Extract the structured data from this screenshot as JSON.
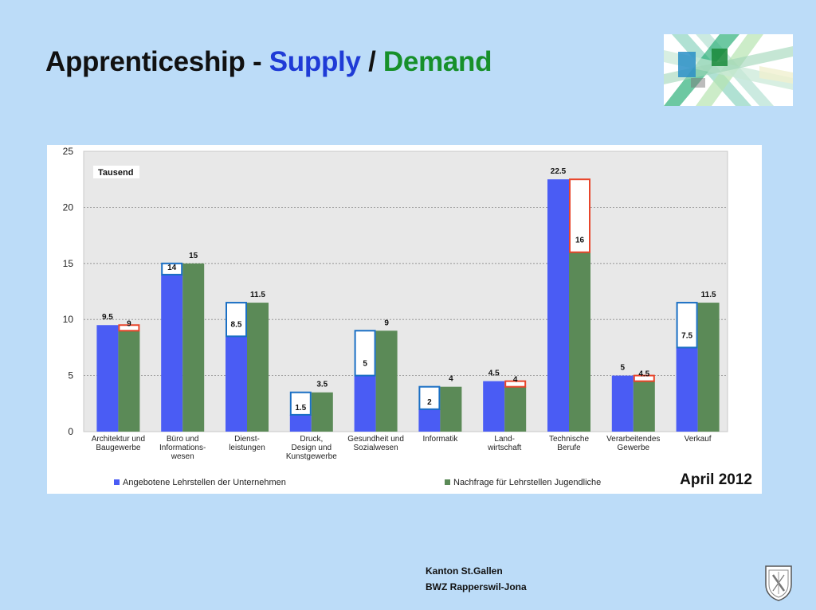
{
  "slide": {
    "title_main": "Apprenticeship - ",
    "title_supply": "Supply",
    "title_sep": " / ",
    "title_demand": "Demand",
    "date": "April 2012",
    "footer_line1": "Kanton St.Gallen",
    "footer_line2": "BWZ Rapperswil-Jona"
  },
  "chart_data": {
    "type": "bar",
    "unit_label": "Tausend",
    "ylim": [
      0,
      25
    ],
    "yticks": [
      0,
      5,
      10,
      15,
      20,
      25
    ],
    "grid": true,
    "legend_position": "bottom",
    "categories": [
      [
        "Architektur und",
        "Baugewerbe"
      ],
      [
        "Büro und",
        "Informations-",
        "wesen"
      ],
      [
        "Dienst-",
        "leistungen"
      ],
      [
        "Druck,",
        "Design und",
        "Kunstgewerbe"
      ],
      [
        "Gesundheit  und",
        "Sozialwesen"
      ],
      [
        "Informatik"
      ],
      [
        "Land-",
        "wirtschaft"
      ],
      [
        "Technische",
        "Berufe"
      ],
      [
        "Verarbeitendes",
        "Gewerbe"
      ],
      [
        "Verkauf"
      ]
    ],
    "series": [
      {
        "name": "Angebotene Lehrstellen der Unternehmen",
        "color": "#4a5cf4",
        "values": [
          9.5,
          14,
          8.5,
          1.5,
          5,
          2,
          4.5,
          22.5,
          5,
          7.5
        ],
        "labels": [
          "9.5",
          "14",
          "8.5",
          "1.5",
          "5",
          "2",
          "4.5",
          "22.5",
          "5",
          "7.5"
        ]
      },
      {
        "name": "Nachfrage für Lehrstellen Jugendliche",
        "color": "#5b8a57",
        "values": [
          9,
          15,
          11.5,
          3.5,
          9,
          4,
          4,
          16,
          4.5,
          11.5
        ],
        "labels": [
          "9",
          "15",
          "11.5",
          "3.5",
          "9",
          "4",
          "4",
          "16",
          "4.5",
          "11.5"
        ]
      }
    ],
    "gap_highlight": {
      "shortage_color": "#1a6fc4",
      "surplus_color": "#e8452b"
    }
  }
}
